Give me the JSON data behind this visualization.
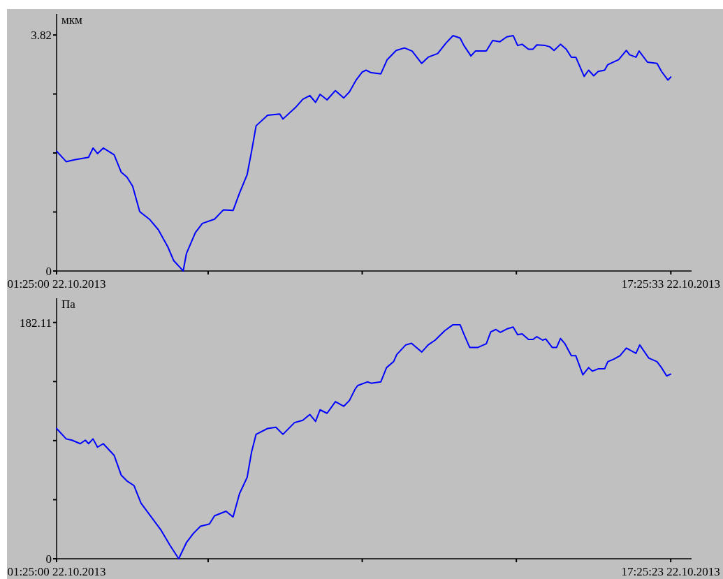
{
  "chart_data": [
    {
      "type": "line",
      "ylabel": "мкм",
      "x": [
        "2013-10-22T01:25:00",
        "2013-10-22T01:40",
        "2013-10-22T01:53",
        "2013-10-22T02:15",
        "2013-10-22T02:22",
        "2013-10-22T02:29",
        "2013-10-22T02:38",
        "2013-10-22T02:55",
        "2013-10-22T03:06",
        "2013-10-22T03:15",
        "2013-10-22T03:24",
        "2013-10-22T03:35",
        "2013-10-22T03:50",
        "2013-10-22T04:04",
        "2013-10-22T04:19",
        "2013-10-22T04:28",
        "2013-10-22T04:37",
        "2013-10-22T04:43",
        "2013-10-22T04:48",
        "2013-10-22T05:02",
        "2013-10-22T05:13",
        "2013-10-22T05:32",
        "2013-10-22T05:46",
        "2013-10-22T06:01",
        "2013-10-22T06:11",
        "2013-10-22T06:23",
        "2013-10-22T06:30",
        "2013-10-22T06:37",
        "2013-10-22T06:55",
        "2013-10-22T07:14",
        "2013-10-22T07:19",
        "2013-10-22T07:39",
        "2013-10-22T07:50",
        "2013-10-22T08:01",
        "2013-10-22T08:10",
        "2013-10-22T08:17",
        "2013-10-22T08:28",
        "2013-10-22T08:41",
        "2013-10-22T08:54",
        "2013-10-22T09:03",
        "2013-10-22T09:14",
        "2013-10-22T09:23",
        "2013-10-22T09:29",
        "2013-10-22T09:37",
        "2013-10-22T09:52",
        "2013-10-22T10:02",
        "2013-10-22T10:16",
        "2013-10-22T10:29",
        "2013-10-22T10:41",
        "2013-10-22T10:56",
        "2013-10-22T11:06",
        "2013-10-22T11:21",
        "2013-10-22T11:34",
        "2013-10-22T11:45",
        "2013-10-22T11:56",
        "2013-10-22T12:02",
        "2013-10-22T12:13",
        "2013-10-22T12:20",
        "2013-10-22T12:37",
        "2013-10-22T12:47",
        "2013-10-22T12:58",
        "2013-10-22T13:09",
        "2013-10-22T13:19",
        "2013-10-22T13:26",
        "2013-10-22T13:33",
        "2013-10-22T13:43",
        "2013-10-22T13:50",
        "2013-10-22T13:56",
        "2013-10-22T14:09",
        "2013-10-22T14:16",
        "2013-10-22T14:23",
        "2013-10-22T14:33",
        "2013-10-22T14:42",
        "2013-10-22T14:50",
        "2013-10-22T14:57",
        "2013-10-22T15:10",
        "2013-10-22T15:17",
        "2013-10-22T15:25",
        "2013-10-22T15:32",
        "2013-10-22T15:42",
        "2013-10-22T15:47",
        "2013-10-22T16:04",
        "2013-10-22T16:16",
        "2013-10-22T16:21",
        "2013-10-22T16:31",
        "2013-10-22T16:36",
        "2013-10-22T16:49",
        "2013-10-22T17:04",
        "2013-10-22T17:11",
        "2013-10-22T17:21",
        "2013-10-22T17:25:33"
      ],
      "series": [
        {
          "color": "#0000ff",
          "values": [
            1.94,
            1.77,
            1.8,
            1.84,
            1.99,
            1.9,
            1.99,
            1.88,
            1.6,
            1.52,
            1.37,
            0.96,
            0.84,
            0.67,
            0.39,
            0.17,
            0.07,
            0,
            0.28,
            0.62,
            0.77,
            0.84,
            0.99,
            0.98,
            1.26,
            1.56,
            1.94,
            2.35,
            2.52,
            2.54,
            2.46,
            2.65,
            2.78,
            2.84,
            2.73,
            2.86,
            2.77,
            2.92,
            2.8,
            2.9,
            3.1,
            3.22,
            3.25,
            3.21,
            3.19,
            3.42,
            3.57,
            3.61,
            3.56,
            3.36,
            3.46,
            3.52,
            3.69,
            3.81,
            3.77,
            3.65,
            3.48,
            3.56,
            3.56,
            3.73,
            3.71,
            3.79,
            3.81,
            3.65,
            3.67,
            3.59,
            3.59,
            3.66,
            3.65,
            3.63,
            3.57,
            3.67,
            3.59,
            3.46,
            3.46,
            3.15,
            3.25,
            3.16,
            3.23,
            3.25,
            3.34,
            3.42,
            3.57,
            3.5,
            3.46,
            3.56,
            3.38,
            3.36,
            3.23,
            3.09,
            3.14
          ]
        }
      ],
      "xlim": [
        "2013-10-22T01:25:00",
        "2013-10-22T17:58"
      ],
      "xticks": [
        {
          "value": "2013-10-22T01:25:00",
          "label": "01:25:00 22.10.2013"
        },
        {
          "value": "2013-10-22T05:22",
          "label": null
        },
        {
          "value": "2013-10-22T09:23",
          "label": null
        },
        {
          "value": "2013-10-22T13:24",
          "label": null
        },
        {
          "value": "2013-10-22T17:25:33",
          "label": "17:25:33 22.10.2013"
        }
      ],
      "ylim": [
        0,
        4.16
      ],
      "yticks": [
        0,
        {
          "value": 0.955,
          "label": null
        },
        {
          "value": 1.91,
          "label": null
        },
        {
          "value": 2.865,
          "label": null
        },
        3.82
      ]
    },
    {
      "type": "line",
      "ylabel": "Па",
      "x": [
        "2013-10-22T01:25:00",
        "2013-10-22T01:40",
        "2013-10-22T01:49",
        "2013-10-22T02:02",
        "2013-10-22T02:10",
        "2013-10-22T02:15",
        "2013-10-22T02:22",
        "2013-10-22T02:29",
        "2013-10-22T02:38",
        "2013-10-22T02:55",
        "2013-10-22T03:06",
        "2013-10-22T03:15",
        "2013-10-22T03:26",
        "2013-10-22T03:37",
        "2013-10-22T03:53",
        "2013-10-22T04:08",
        "2013-10-22T04:22",
        "2013-10-22T04:36",
        "2013-10-22T04:48",
        "2013-10-22T04:59",
        "2013-10-22T05:10",
        "2013-10-22T05:24",
        "2013-10-22T05:32",
        "2013-10-22T05:50",
        "2013-10-22T06:01",
        "2013-10-22T06:11",
        "2013-10-22T06:23",
        "2013-10-22T06:30",
        "2013-10-22T06:37",
        "2013-10-22T06:55",
        "2013-10-22T07:08",
        "2013-10-22T07:19",
        "2013-10-22T07:37",
        "2013-10-22T07:50",
        "2013-10-22T08:01",
        "2013-10-22T08:10",
        "2013-10-22T08:17",
        "2013-10-22T08:28",
        "2013-10-22T08:41",
        "2013-10-22T08:54",
        "2013-10-22T09:03",
        "2013-10-22T09:12",
        "2013-10-22T09:16",
        "2013-10-22T09:31",
        "2013-10-22T09:37",
        "2013-10-22T09:52",
        "2013-10-22T10:01",
        "2013-10-22T10:12",
        "2013-10-22T10:17",
        "2013-10-22T10:31",
        "2013-10-22T10:40",
        "2013-10-22T10:56",
        "2013-10-22T11:06",
        "2013-10-22T11:17",
        "2013-10-22T11:32",
        "2013-10-22T11:45",
        "2013-10-22T11:56",
        "2013-10-22T12:02",
        "2013-10-22T12:11",
        "2013-10-22T12:24",
        "2013-10-22T12:37",
        "2013-10-22T12:44",
        "2013-10-22T12:52",
        "2013-10-22T12:59",
        "2013-10-22T13:09",
        "2013-10-22T13:19",
        "2013-10-22T13:26",
        "2013-10-22T13:33",
        "2013-10-22T13:43",
        "2013-10-22T13:50",
        "2013-10-22T13:56",
        "2013-10-22T14:05",
        "2013-10-22T14:10",
        "2013-10-22T14:20",
        "2013-10-22T14:27",
        "2013-10-22T14:33",
        "2013-10-22T14:40",
        "2013-10-22T14:50",
        "2013-10-22T14:57",
        "2013-10-22T15:08",
        "2013-10-22T15:17",
        "2013-10-22T15:23",
        "2013-10-22T15:32",
        "2013-10-22T15:42",
        "2013-10-22T15:47",
        "2013-10-22T15:56",
        "2013-10-22T16:06",
        "2013-10-22T16:16",
        "2013-10-22T16:31",
        "2013-10-22T16:37",
        "2013-10-22T16:51",
        "2013-10-22T17:04",
        "2013-10-22T17:11",
        "2013-10-22T17:19",
        "2013-10-22T17:25:23"
      ],
      "series": [
        {
          "color": "#0000ff",
          "values": [
            100.4,
            92.4,
            91.4,
            88.7,
            91.4,
            88.7,
            92.4,
            86.0,
            88.7,
            79.7,
            64.5,
            60.0,
            56.4,
            42.9,
            32.2,
            22.3,
            10.6,
            0,
            12.4,
            19.6,
            25.0,
            26.8,
            33.1,
            36.6,
            32.2,
            50.1,
            62.7,
            82.4,
            95.9,
            100.4,
            101.3,
            95.9,
            104.9,
            106.7,
            111.2,
            105.8,
            114.8,
            112.1,
            121.1,
            117.5,
            122.0,
            130.9,
            133.5,
            136.3,
            135.3,
            136.3,
            147.3,
            151.9,
            157.4,
            164.8,
            166.1,
            159.3,
            164.8,
            168.5,
            175.8,
            180.4,
            180.4,
            173.1,
            162.9,
            162.9,
            165.7,
            174.9,
            176.7,
            174.5,
            177.1,
            178.6,
            172.7,
            173.4,
            169.0,
            169.0,
            171.2,
            168.5,
            169.4,
            162.9,
            162.9,
            169.8,
            165.7,
            156.5,
            156.5,
            141.8,
            147.3,
            144.6,
            146.4,
            146.4,
            151.9,
            153.8,
            156.5,
            162.4,
            158.3,
            164.8,
            154.7,
            151.9,
            147.3,
            140.9,
            142.3
          ]
        }
      ],
      "xlim": [
        "2013-10-22T01:25:00",
        "2013-10-22T17:58"
      ],
      "xticks": [
        {
          "value": "2013-10-22T01:25:00",
          "label": "01:25:00 22.10.2013"
        },
        {
          "value": "2013-10-22T05:22",
          "label": null
        },
        {
          "value": "2013-10-22T09:23",
          "label": null
        },
        {
          "value": "2013-10-22T13:24",
          "label": null
        },
        {
          "value": "2013-10-22T17:25:23",
          "label": "17:25:23 22.10.2013"
        }
      ],
      "ylim": [
        0,
        200.8
      ],
      "yticks": [
        0,
        {
          "value": 45.53,
          "label": null
        },
        {
          "value": 91.06,
          "label": null
        },
        {
          "value": 136.58,
          "label": null
        },
        182.11
      ]
    }
  ]
}
